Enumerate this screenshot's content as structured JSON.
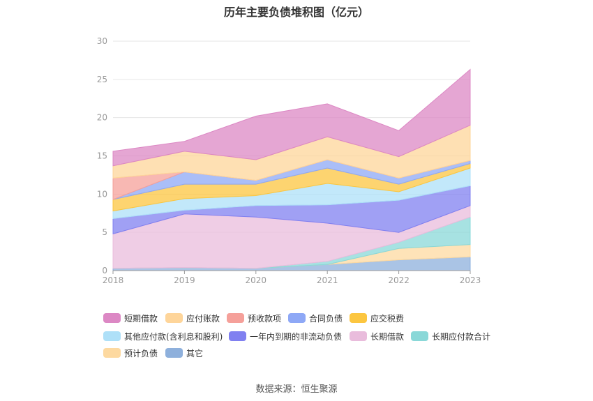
{
  "chart_data": {
    "type": "area",
    "stacked": true,
    "title": "历年主要负债堆积图（亿元）",
    "x": [
      "2018",
      "2019",
      "2020",
      "2021",
      "2022",
      "2023"
    ],
    "ylim": [
      0,
      30
    ],
    "yticks": [
      "0",
      "5",
      "10",
      "15",
      "20",
      "25",
      "30"
    ],
    "grid": true,
    "legend_position": "bottom",
    "series": [
      {
        "name": "其它",
        "color": "#8eb0dc",
        "values": [
          0.3,
          0.4,
          0.3,
          0.8,
          1.4,
          1.8
        ]
      },
      {
        "name": "预计负债",
        "color": "#fdd9a0",
        "values": [
          0.0,
          0.0,
          0.0,
          0.0,
          1.5,
          1.6
        ]
      },
      {
        "name": "长期应付款合计",
        "color": "#8ad8d8",
        "values": [
          0.0,
          0.0,
          0.0,
          0.4,
          0.8,
          3.6
        ]
      },
      {
        "name": "长期借款",
        "color": "#e9bcdc",
        "values": [
          4.5,
          7.0,
          6.7,
          5.0,
          1.3,
          1.5
        ]
      },
      {
        "name": "一年内到期的非流动负债",
        "color": "#8080f0",
        "values": [
          2.0,
          0.5,
          1.5,
          2.4,
          4.2,
          2.6
        ]
      },
      {
        "name": "其他应付款(含利息和股利)",
        "color": "#aee0f8",
        "values": [
          1.0,
          1.5,
          1.3,
          2.8,
          1.1,
          2.3
        ]
      },
      {
        "name": "应交税费",
        "color": "#fcc640",
        "values": [
          1.5,
          1.9,
          1.5,
          2.0,
          1.0,
          0.6
        ]
      },
      {
        "name": "合同负债",
        "color": "#8ea8f6",
        "values": [
          0.0,
          1.6,
          0.5,
          1.1,
          0.8,
          0.4
        ]
      },
      {
        "name": "预收款项",
        "color": "#f5a09a",
        "values": [
          2.8,
          0.0,
          0.0,
          0.0,
          0.0,
          0.0
        ]
      },
      {
        "name": "应付账款",
        "color": "#fed59a",
        "values": [
          1.6,
          2.7,
          2.7,
          3.0,
          2.8,
          4.6
        ]
      },
      {
        "name": "短期借款",
        "color": "#dc88c4",
        "values": [
          1.9,
          1.3,
          5.7,
          4.3,
          3.4,
          7.3
        ]
      }
    ],
    "legend": [
      "短期借款",
      "应付账款",
      "预收款项",
      "合同负债",
      "应交税费",
      "其他应付款(含利息和股利)",
      "一年内到期的非流动负债",
      "长期借款",
      "长期应付款合计",
      "预计负债",
      "其它"
    ]
  },
  "source": "数据来源：恒生聚源"
}
